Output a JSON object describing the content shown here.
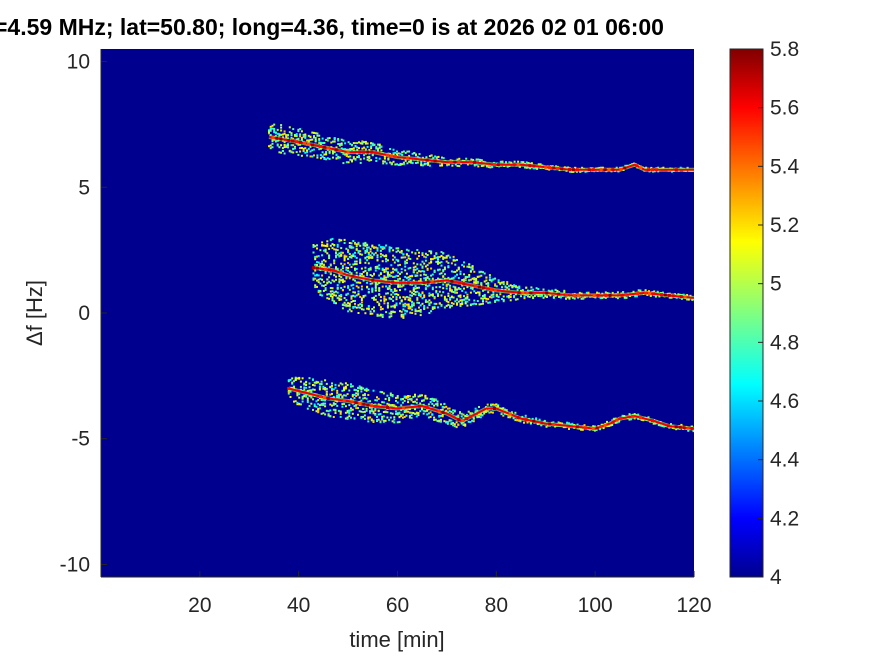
{
  "title": "=4.59 MHz;  lat=50.80; long=4.36, time=0 is at 2026 02 01 06:00",
  "chart_data": {
    "type": "heatmap",
    "xlabel": "time [min]",
    "ylabel": "Δf [Hz]",
    "xlim": [
      0,
      120
    ],
    "ylim": [
      -10.5,
      10.5
    ],
    "x_ticks": [
      20,
      40,
      60,
      80,
      100,
      120
    ],
    "y_ticks": [
      10,
      5,
      0,
      -5,
      -10
    ],
    "x_tick_labels": [
      "20",
      "40",
      "60",
      "80",
      "100",
      "120"
    ],
    "y_tick_labels": [
      "10",
      "5",
      "0",
      "-5",
      "-10"
    ],
    "colormap": "jet",
    "background_color": "#00008f",
    "colorbar": {
      "min": 4,
      "max": 5.8,
      "ticks": [
        4,
        4.2,
        4.4,
        4.6,
        4.8,
        5,
        5.2,
        5.4,
        5.6,
        5.8
      ],
      "tick_labels": [
        "4",
        "4.2",
        "4.4",
        "4.6",
        "4.8",
        "5",
        "5.2",
        "5.4",
        "5.6",
        "5.8"
      ]
    },
    "traces": [
      {
        "x": [
          34,
          40,
          45,
          50,
          55,
          60,
          65,
          70,
          75,
          80,
          85,
          90,
          95,
          100,
          105,
          108,
          110,
          115,
          120
        ],
        "y": [
          7.0,
          6.8,
          6.6,
          6.4,
          6.4,
          6.2,
          6.1,
          6.0,
          6.0,
          5.9,
          5.9,
          5.8,
          5.7,
          5.7,
          5.7,
          5.9,
          5.7,
          5.7,
          5.7
        ],
        "spread": [
          0.35,
          0.35,
          0.3,
          0.3,
          0.25,
          0.2,
          0.15,
          0.1,
          0.1,
          0.08,
          0.08,
          0.06,
          0.06,
          0.05,
          0.05,
          0.05,
          0.05,
          0.05,
          0.05
        ]
      },
      {
        "x": [
          43,
          47,
          50,
          55,
          60,
          65,
          70,
          75,
          80,
          85,
          90,
          95,
          100,
          105,
          110,
          115,
          120
        ],
        "y": [
          1.8,
          1.7,
          1.5,
          1.3,
          1.2,
          1.2,
          1.3,
          1.1,
          0.9,
          0.8,
          0.8,
          0.7,
          0.7,
          0.7,
          0.8,
          0.7,
          0.6
        ],
        "spread": [
          0.6,
          0.8,
          0.9,
          0.9,
          0.9,
          0.8,
          0.7,
          0.5,
          0.3,
          0.15,
          0.12,
          0.1,
          0.08,
          0.08,
          0.08,
          0.06,
          0.06
        ]
      },
      {
        "x": [
          38,
          42,
          46,
          50,
          55,
          60,
          65,
          70,
          73,
          76,
          78,
          80,
          85,
          90,
          95,
          100,
          103,
          105,
          108,
          112,
          115,
          120
        ],
        "y": [
          -3.0,
          -3.2,
          -3.4,
          -3.5,
          -3.7,
          -3.8,
          -3.7,
          -4.0,
          -4.3,
          -4.0,
          -3.8,
          -3.8,
          -4.2,
          -4.4,
          -4.5,
          -4.6,
          -4.4,
          -4.2,
          -4.1,
          -4.3,
          -4.5,
          -4.6
        ],
        "spread": [
          0.3,
          0.4,
          0.45,
          0.45,
          0.4,
          0.35,
          0.3,
          0.25,
          0.2,
          0.15,
          0.15,
          0.12,
          0.1,
          0.08,
          0.08,
          0.07,
          0.07,
          0.07,
          0.07,
          0.07,
          0.07,
          0.07
        ]
      }
    ]
  }
}
